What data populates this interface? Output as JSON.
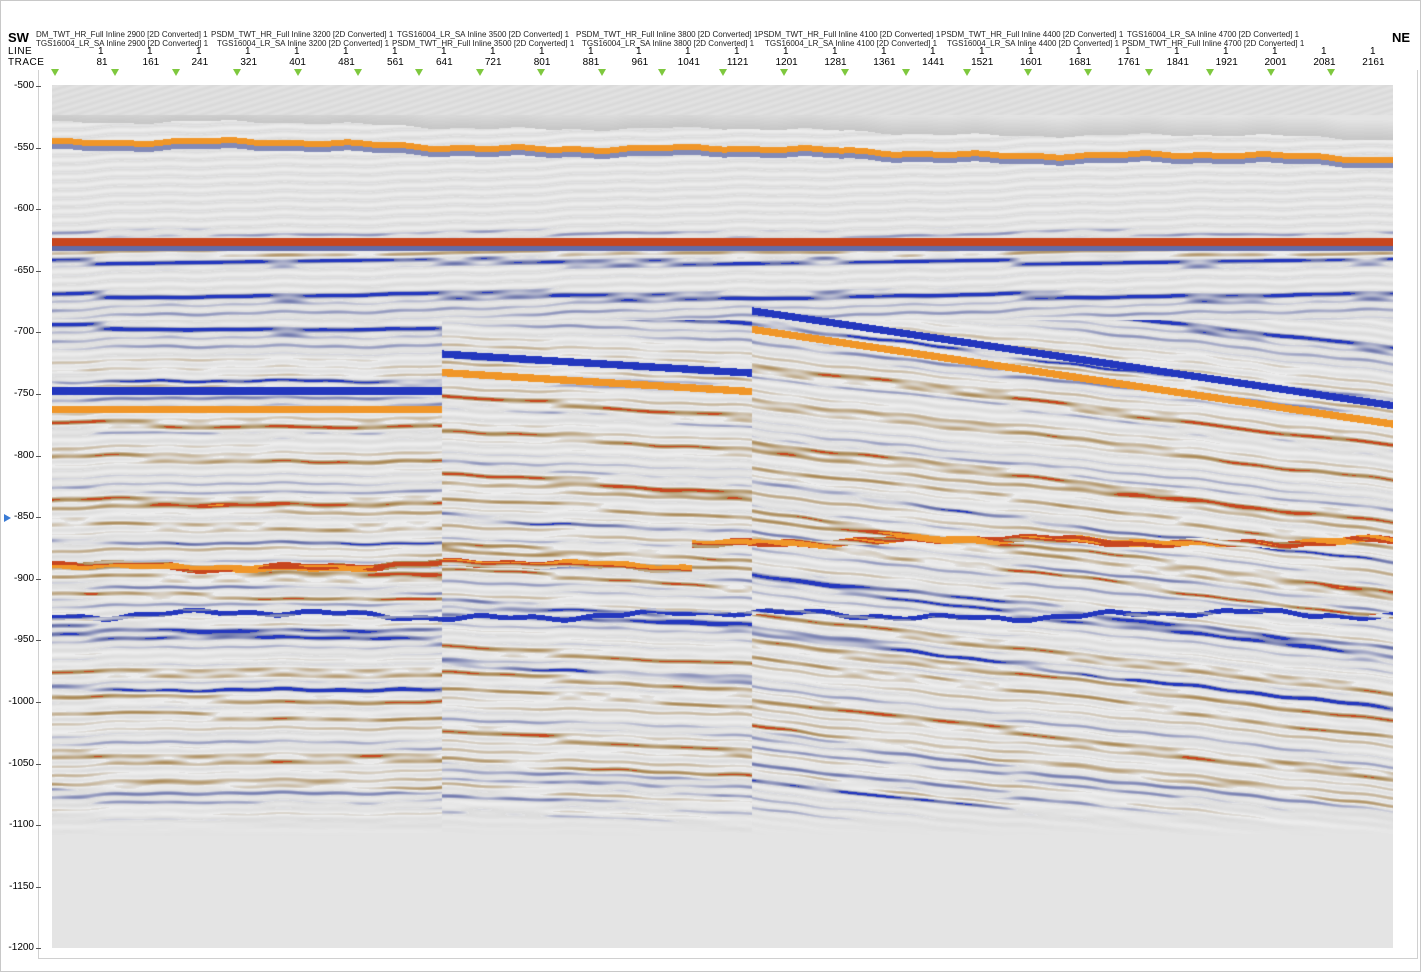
{
  "header": {
    "left_dir": "SW",
    "right_dir": "NE",
    "line_label": "LINE",
    "trace_label": "TRACE"
  },
  "lines_row1": [
    "DM_TWT_HR_Full Inline 2900 [2D Converted] 1",
    "PSDM_TWT_HR_Full Inline 3200 [2D Converted] 1",
    "TGS16004_LR_SA Inline 3500 [2D Converted] 1",
    "PSDM_TWT_HR_Full Inline 3800 [2D Converted] 1",
    "PSDM_TWT_HR_Full Inline 4100 [2D Converted] 1",
    "PSDM_TWT_HR_Full Inline 4400 [2D Converted] 1",
    "TGS16004_LR_SA Inline 4700 [2D Converted] 1"
  ],
  "lines_row2": [
    "TGS16004_LR_SA Inline 2900 [2D Converted] 1",
    "TGS16004_LR_SA Inline 3200 [2D Converted] 1",
    "PSDM_TWT_HR_Full Inline 3500 [2D Converted] 1",
    "TGS16004_LR_SA Inline 3800 [2D Converted] 1",
    "TGS16004_LR_SA Inline 4100 [2D Converted] 1",
    "TGS16004_LR_SA Inline 4400 [2D Converted] 1",
    "PSDM_TWT_HR_Full Inline 4700 [2D Converted] 1"
  ],
  "line_ones": [
    "1",
    "1",
    "1",
    "1",
    "1",
    "1",
    "1",
    "1",
    "1",
    "1",
    "1",
    "1",
    "1",
    "1",
    "1",
    "1",
    "1",
    "1",
    "1",
    "1",
    "1",
    "1",
    "1",
    "1",
    "1",
    "1",
    "1"
  ],
  "traces": [
    "81",
    "161",
    "241",
    "321",
    "401",
    "481",
    "561",
    "641",
    "721",
    "801",
    "881",
    "961",
    "1041",
    "1121",
    "1201",
    "1281",
    "1361",
    "1441",
    "1521",
    "1601",
    "1681",
    "1761",
    "1841",
    "1921",
    "2001",
    "2081",
    "2161"
  ],
  "y_axis": [
    "-500",
    "-550",
    "-600",
    "-650",
    "-700",
    "-750",
    "-800",
    "-850",
    "-900",
    "-950",
    "-1000",
    "-1050",
    "-1100",
    "-1150",
    "-1200"
  ],
  "colors": {
    "positive": "#c0392b",
    "strong_positive": "#f39c12",
    "negative": "#1f3fbf",
    "weak": "#8b6b2e",
    "background": "#e4e4e4",
    "marker": "#7ec83e",
    "pointer": "#3a7bd5"
  }
}
